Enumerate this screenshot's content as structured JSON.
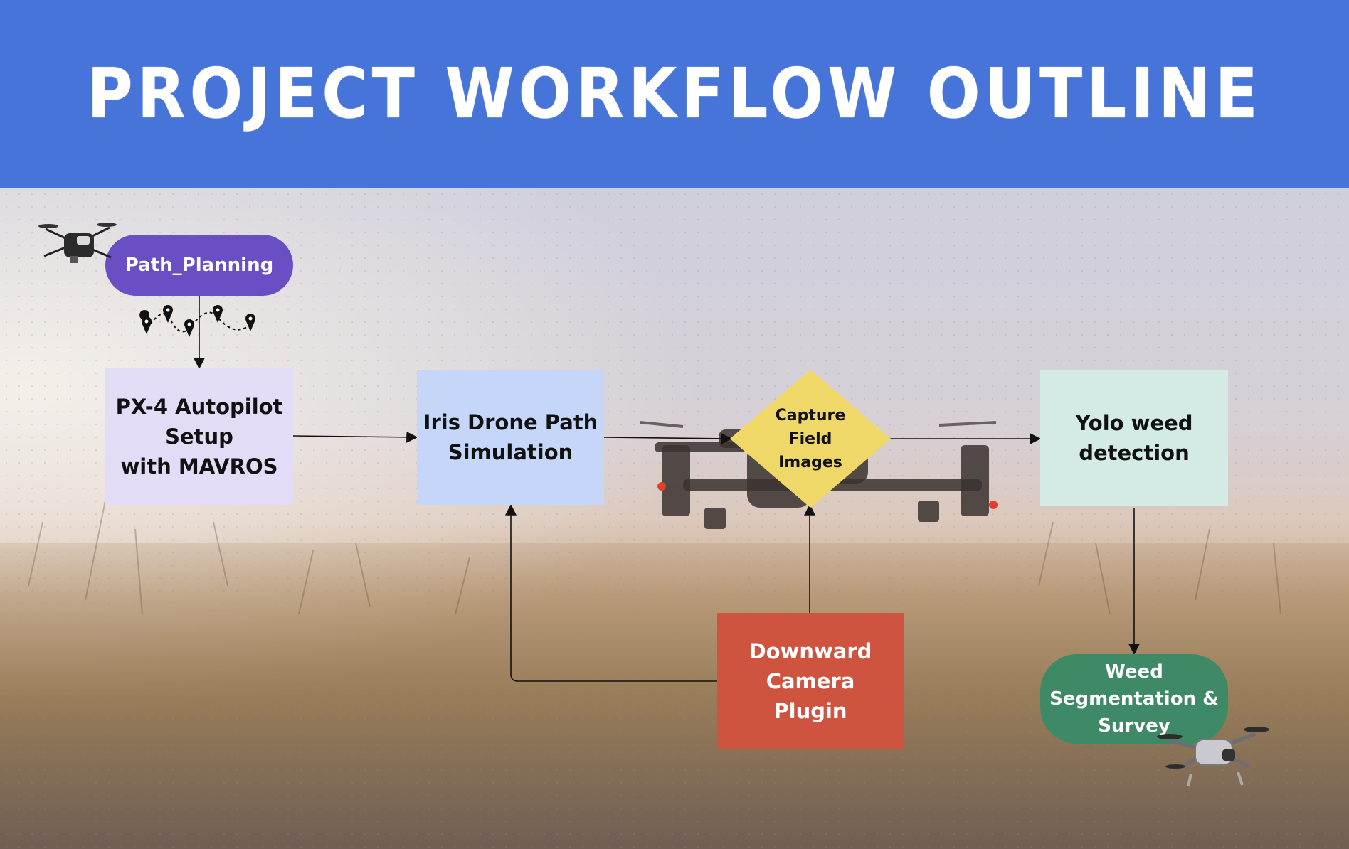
{
  "header": {
    "title": "PROJECT WORKFLOW OUTLINE",
    "color": "#4674d8"
  },
  "nodes": {
    "path_planning": {
      "label": "Path_Planning",
      "color": "#6a4fc4"
    },
    "px4_setup": {
      "label": "PX-4 Autopilot\nSetup\nwith MAVROS",
      "color": "#e2dcf7"
    },
    "iris_sim": {
      "label": "Iris Drone Path\nSimulation",
      "color": "#c5d6f8"
    },
    "capture": {
      "label": "Capture\nField\nImages",
      "color": "#f0d868"
    },
    "yolo": {
      "label": "Yolo weed\ndetection",
      "color": "#d3ebe4"
    },
    "camera_plugin": {
      "label": "Downward\nCamera\nPlugin",
      "color": "#cf5440"
    },
    "segmentation": {
      "label": "Weed\nSegmentation &\nSurvey",
      "color": "#3f8a66"
    }
  },
  "icons": {
    "drone_top": "drone-icon",
    "drone_bottom": "drone-icon",
    "waypoints": "waypoint-path-icon"
  }
}
